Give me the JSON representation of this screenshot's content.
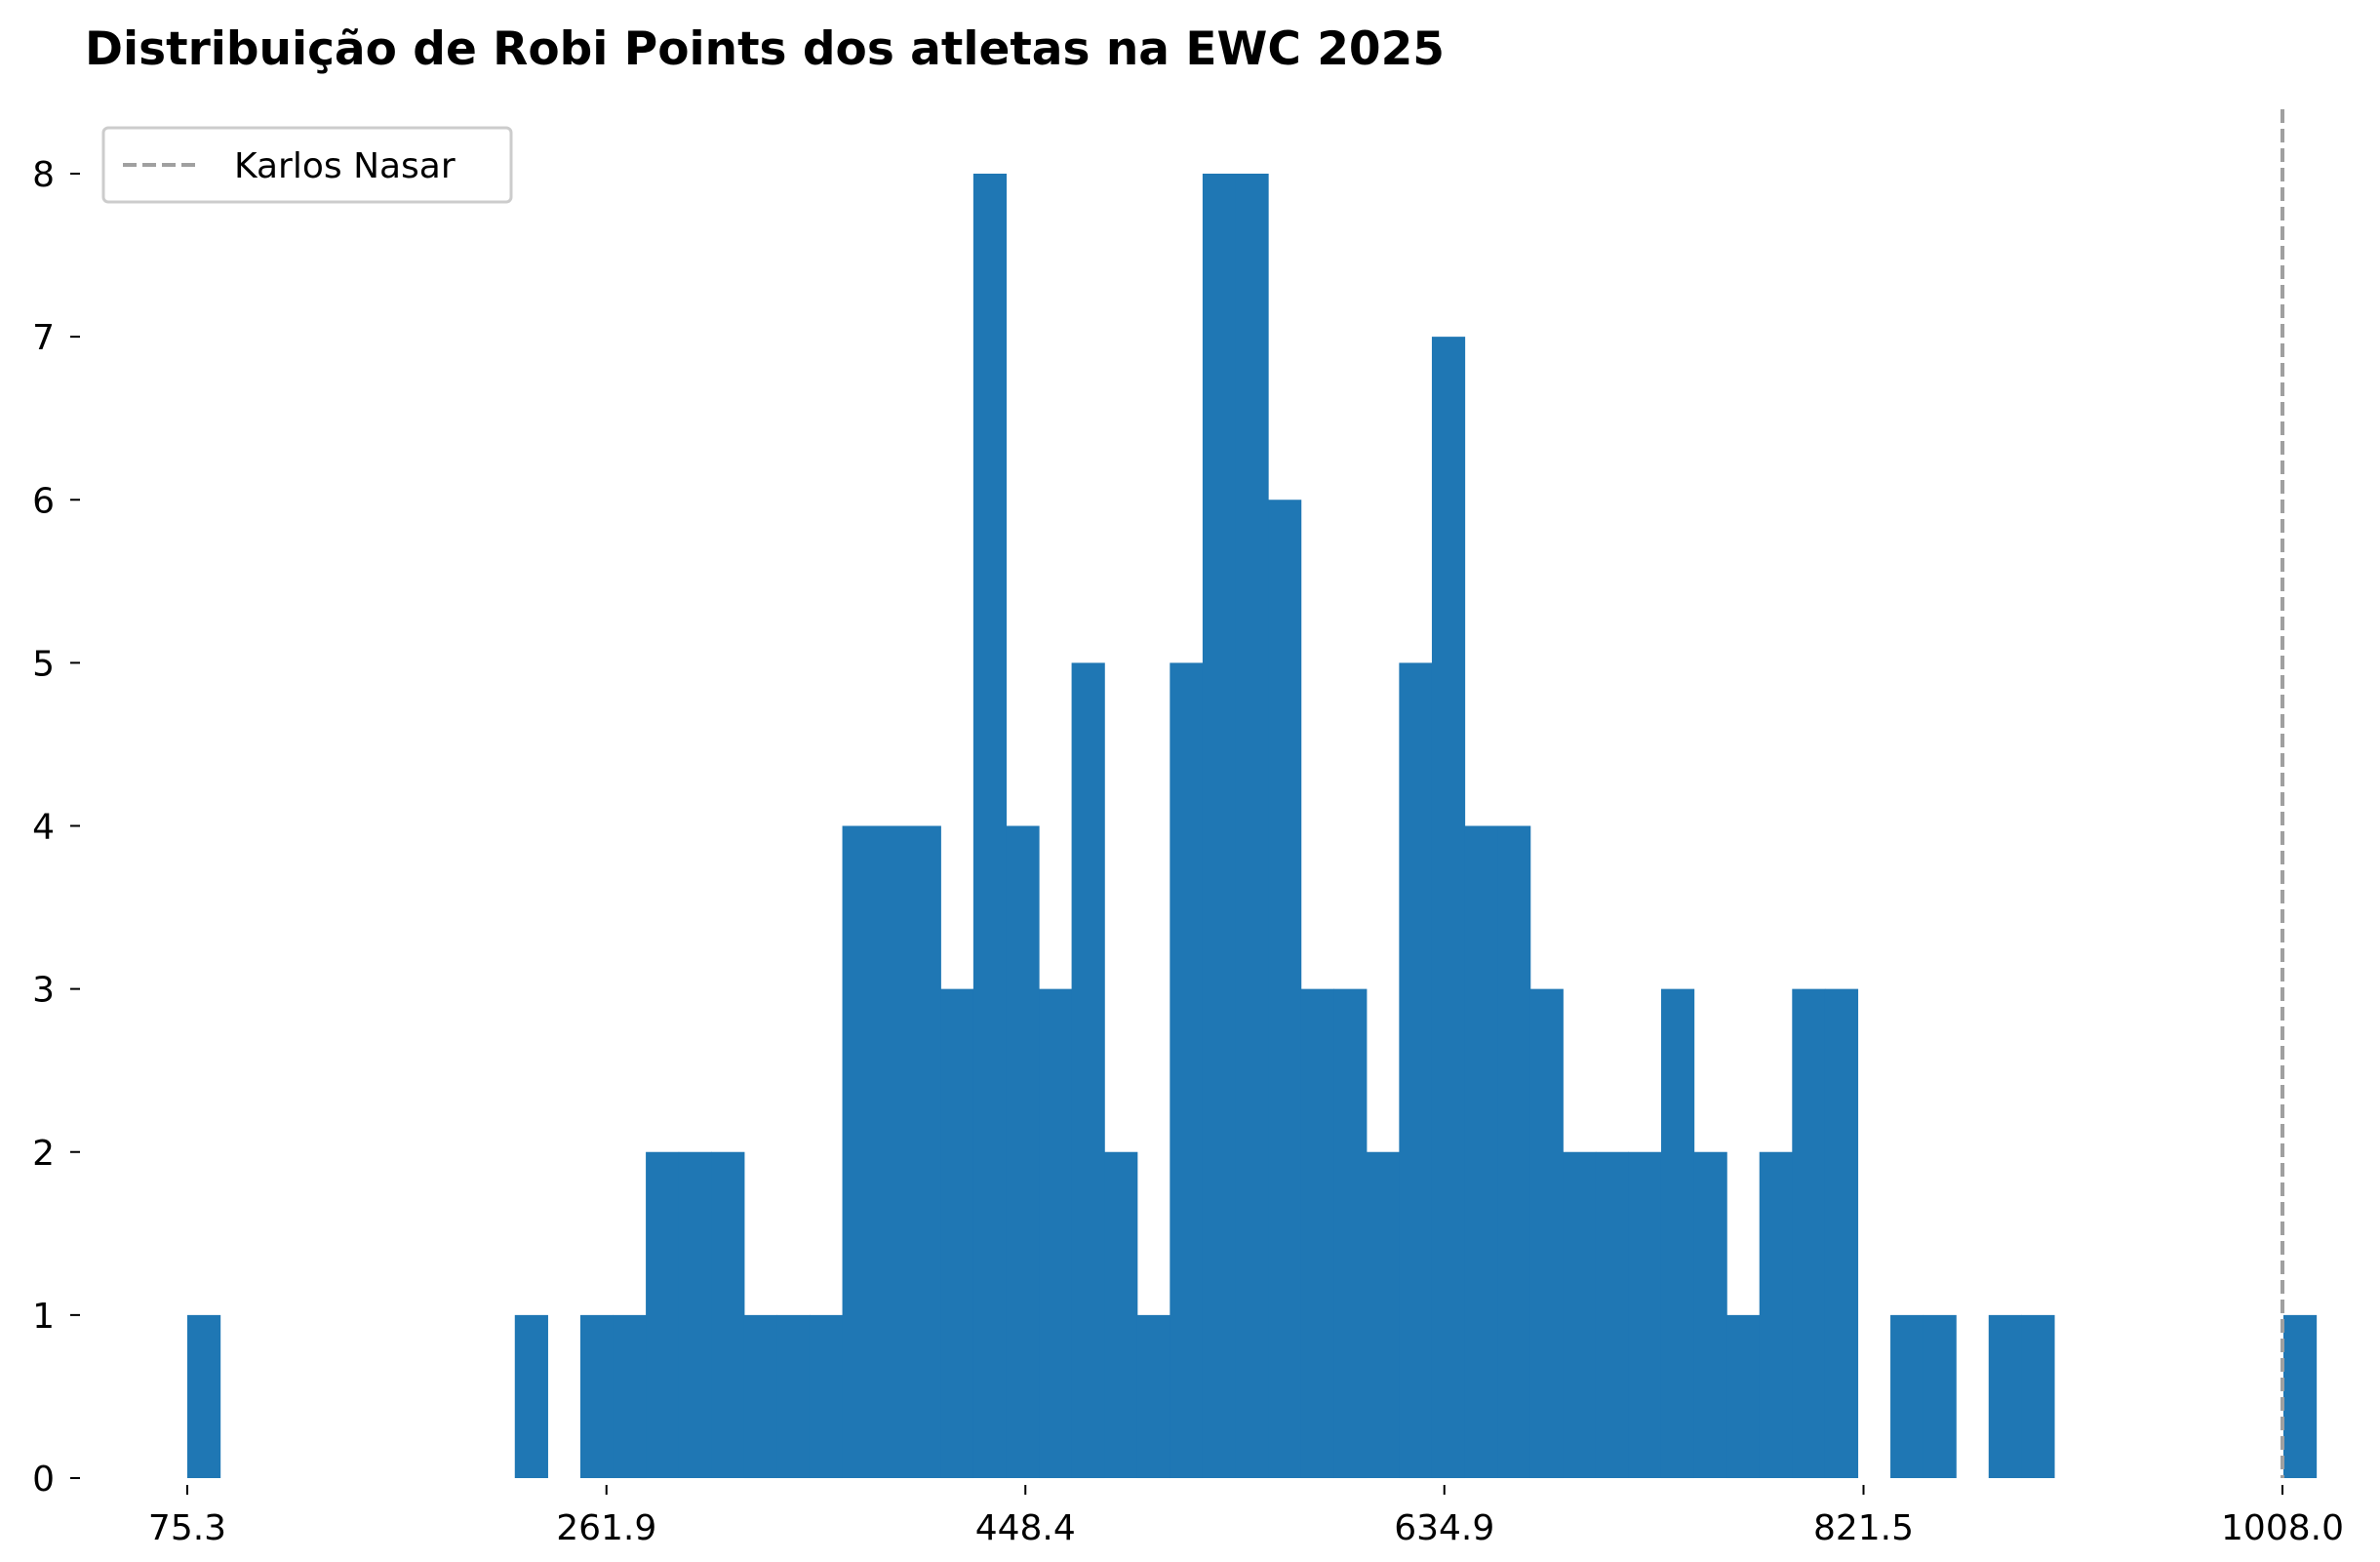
{
  "chart_data": {
    "type": "bar",
    "title": "Distribuição de Robi Points dos atletas na EWC 2025",
    "xlabel": "",
    "ylabel": "",
    "bin_start": 75.3,
    "bin_width": 14.58,
    "xlim": [
      75.3,
      1008.0
    ],
    "ylim": [
      0,
      8
    ],
    "counts": [
      1,
      0,
      0,
      0,
      0,
      0,
      0,
      0,
      0,
      0,
      1,
      0,
      1,
      1,
      2,
      2,
      2,
      1,
      1,
      1,
      4,
      4,
      4,
      3,
      8,
      4,
      3,
      5,
      2,
      1,
      5,
      8,
      8,
      6,
      3,
      3,
      2,
      5,
      7,
      4,
      4,
      3,
      2,
      2,
      2,
      3,
      2,
      1,
      2,
      3,
      3,
      0,
      1,
      1,
      0,
      1,
      1,
      0,
      0,
      0,
      0,
      0,
      0,
      0,
      1
    ],
    "x_ticks": [
      "75.3",
      "261.9",
      "448.4",
      "634.9",
      "821.5",
      "1008.0"
    ],
    "x_tick_values": [
      75.3,
      261.9,
      448.4,
      634.9,
      821.5,
      1008.0
    ],
    "y_ticks": [
      "0",
      "1",
      "2",
      "3",
      "4",
      "5",
      "6",
      "7",
      "8"
    ],
    "bar_color": "#1f77b4",
    "reference_line": {
      "name": "Karlos Nasar",
      "x": 1008.0,
      "color": "#a0a0a0",
      "style": "dashed"
    },
    "legend": {
      "placement": "top-left",
      "label": "Karlos Nasar"
    },
    "grid": false
  }
}
